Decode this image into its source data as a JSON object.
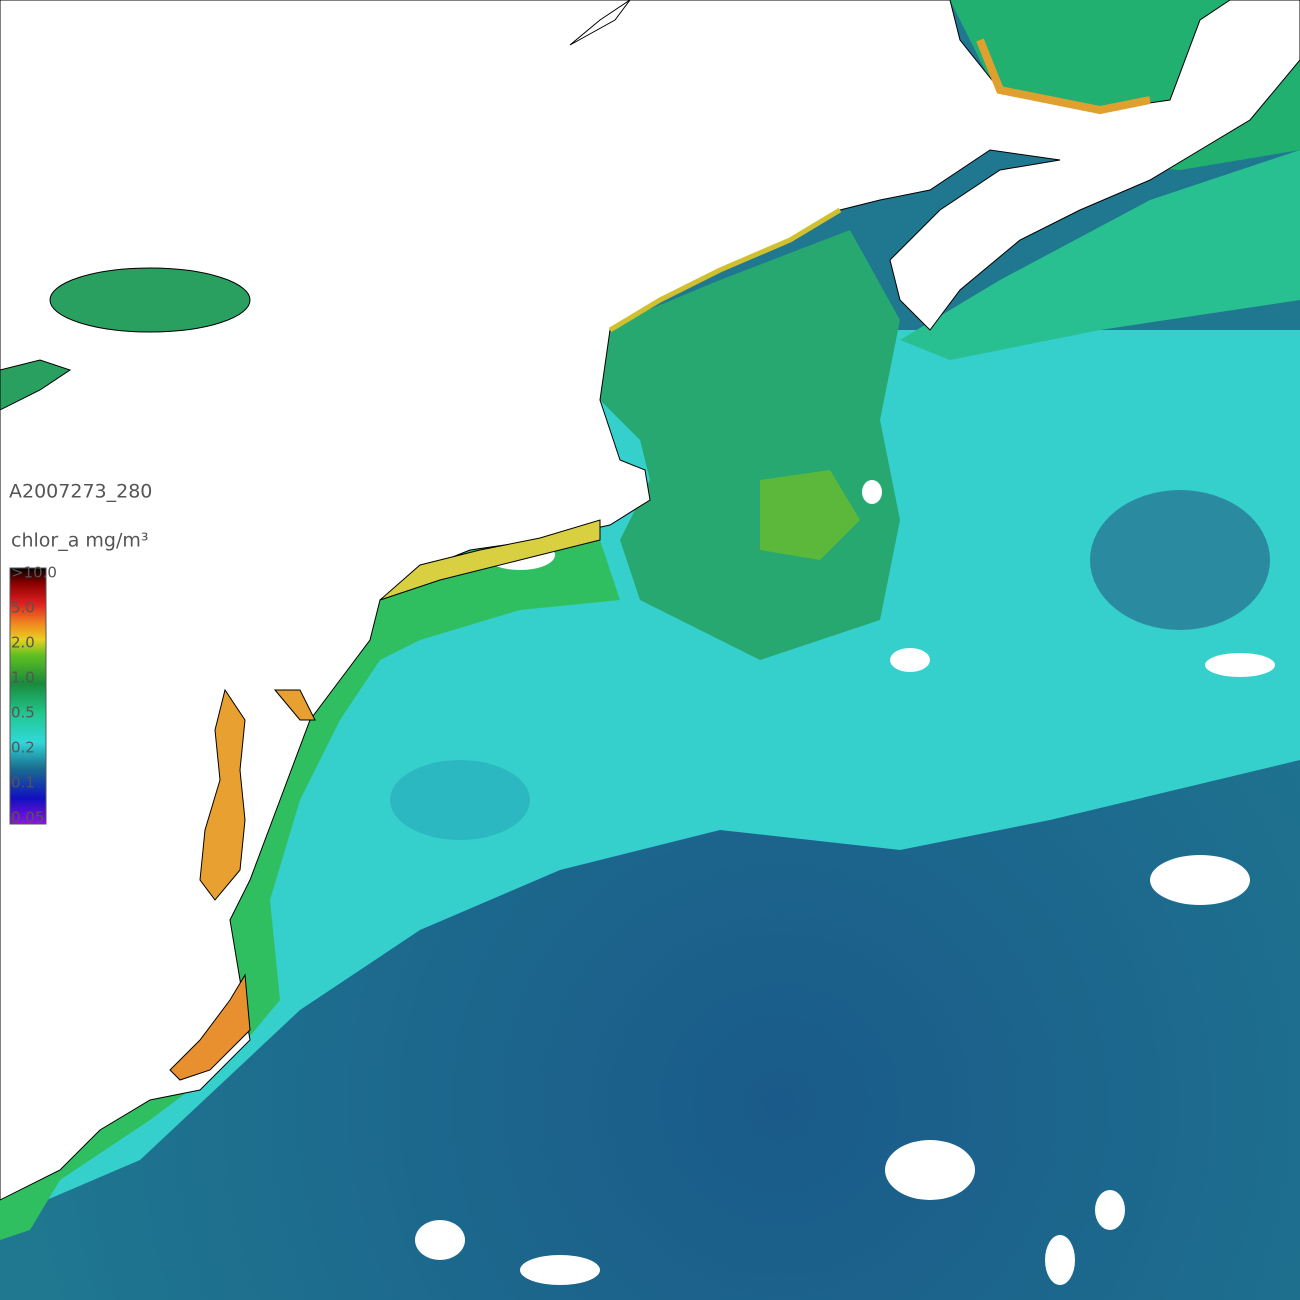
{
  "product_id": "A2007273_280",
  "colorbar": {
    "title": "chlor_a mg/m³",
    "labels": [
      ">10.0",
      "5.0",
      "2.0",
      "1.0",
      "0.5",
      "0.2",
      "0.1",
      "0.05"
    ]
  }
}
